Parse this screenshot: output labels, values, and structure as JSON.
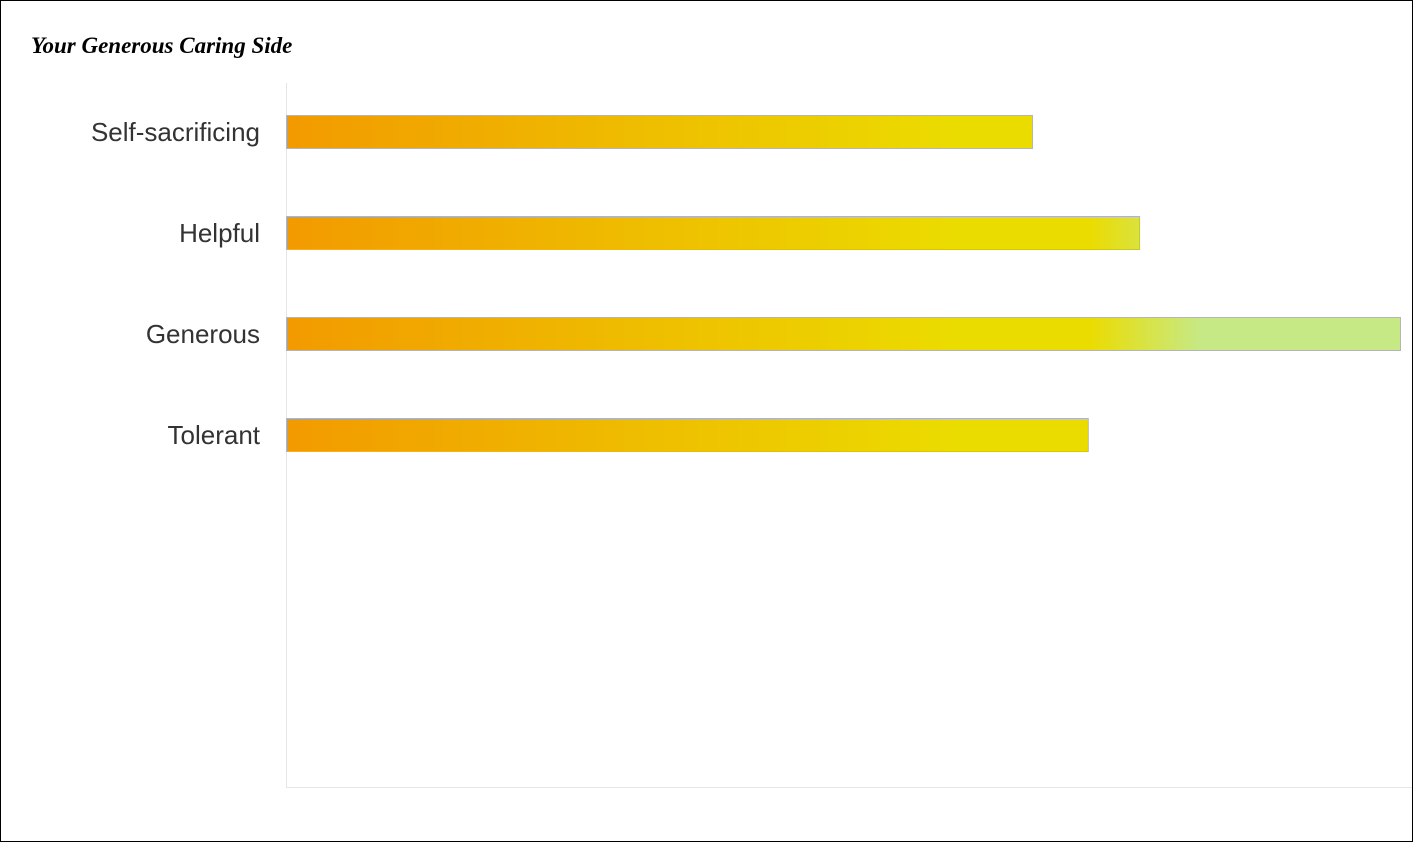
{
  "chart_data": {
    "type": "bar",
    "orientation": "horizontal",
    "title": "Your Generous Caring Side",
    "categories": [
      "Self-sacrificing",
      "Helpful",
      "Generous",
      "Tolerant"
    ],
    "values": [
      67,
      76.6,
      100,
      72
    ],
    "xlim": [
      0,
      100
    ],
    "xlabel": "",
    "ylabel": "",
    "grid": false,
    "legend": "none",
    "colors": {
      "gradient_start": "#f29a00",
      "gradient_mid": "#ebdc00",
      "gradient_end": "#c6e986",
      "bar_border": "#b5b5b5",
      "axis_line": "#e6e6e6",
      "label_text": "#333333"
    }
  }
}
